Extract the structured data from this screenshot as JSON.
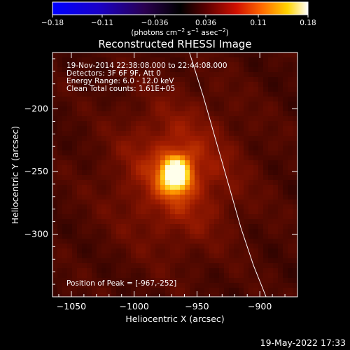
{
  "chart_data": {
    "type": "heatmap",
    "title": "Reconstructed RHESSI Image",
    "xlabel": "Heliocentric X (arcsec)",
    "ylabel": "Heliocentric Y (arcsec)",
    "xlim": [
      -1065,
      -870
    ],
    "ylim": [
      -350,
      -155
    ],
    "x_ticks": [
      -1050,
      -1000,
      -950,
      -900
    ],
    "x_tick_labels": [
      "−1050",
      "−1000",
      "−950",
      "−900"
    ],
    "y_ticks": [
      -300,
      -250,
      -200
    ],
    "y_tick_labels": [
      "−300",
      "−250",
      "−200"
    ],
    "colorbar": {
      "min": -0.18,
      "max": 0.18,
      "colormap": "blue-purple-red-yellow-white",
      "ticks": [
        -0.18,
        -0.11,
        -0.036,
        0.036,
        0.11,
        0.18
      ],
      "tick_labels": [
        "−0.18",
        "−0.11",
        "−0.036",
        "0.036",
        "0.11",
        "0.18"
      ],
      "units_prefix": "(photons cm",
      "units_exp1": "−2",
      "units_mid": " s",
      "units_exp2": "−1",
      "units_mid2": " asec",
      "units_exp3": "−2",
      "units_suffix": ")"
    },
    "annotations": [
      "19-Nov-2014 22:38:08.000 to 22:44:08.000",
      "Detectors: 3F 6F 9F, Att 0",
      "Energy Range: 6.0 - 12.0 keV",
      "Clean    Total counts: 1.61E+05"
    ],
    "peak_label": "Position of Peak = [-967,-252]",
    "peak": {
      "x": -967,
      "y": -252,
      "value": 0.18
    },
    "source_extent_arcsec": {
      "sx": 9,
      "sy": 11
    },
    "halo_extent_arcsec": {
      "sx": 34,
      "sy": 40
    },
    "limb_curve": [
      [
        -956,
        -155
      ],
      [
        -945,
        -190
      ],
      [
        -935,
        -225
      ],
      [
        -925,
        -260
      ],
      [
        -915,
        -295
      ],
      [
        -905,
        -325
      ],
      [
        -895,
        -350
      ]
    ],
    "limb_color": "#ffffff",
    "background_color": "#000000"
  },
  "footer": {
    "timestamp": "19-May-2022 17:33"
  }
}
